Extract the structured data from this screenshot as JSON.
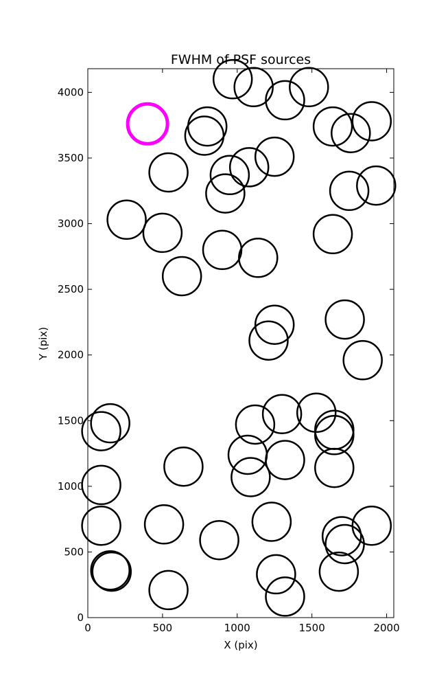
{
  "chart_data": {
    "type": "scatter",
    "title": "FWHM of PSF sources",
    "xlabel": "X (pix)",
    "ylabel": "Y (pix)",
    "xlim": [
      0,
      2048
    ],
    "ylim": [
      0,
      4180
    ],
    "xticks": [
      0,
      500,
      1000,
      1500,
      2000
    ],
    "yticks": [
      0,
      500,
      1000,
      1500,
      2000,
      2500,
      3000,
      3500,
      4000
    ],
    "grid": false,
    "marker": "open-circle",
    "colors": {
      "sources": "#000000",
      "reference": "#ff00ff"
    },
    "series": [
      {
        "role": "sources",
        "points": [
          [
            970,
            4100
          ],
          [
            1110,
            4040
          ],
          [
            1320,
            3940
          ],
          [
            1480,
            4040
          ],
          [
            800,
            3740
          ],
          [
            780,
            3670
          ],
          [
            1640,
            3740
          ],
          [
            1760,
            3690
          ],
          [
            1900,
            3780
          ],
          [
            540,
            3390
          ],
          [
            950,
            3370
          ],
          [
            1080,
            3430
          ],
          [
            1250,
            3510
          ],
          [
            920,
            3230
          ],
          [
            1750,
            3250
          ],
          [
            1930,
            3290
          ],
          [
            260,
            3030
          ],
          [
            500,
            2930
          ],
          [
            1640,
            2920
          ],
          [
            900,
            2800
          ],
          [
            1140,
            2740
          ],
          [
            630,
            2600
          ],
          [
            1250,
            2230
          ],
          [
            1210,
            2110
          ],
          [
            1720,
            2270
          ],
          [
            1840,
            1960
          ],
          [
            150,
            1480
          ],
          [
            90,
            1420
          ],
          [
            1120,
            1470
          ],
          [
            1300,
            1550
          ],
          [
            1530,
            1560
          ],
          [
            1650,
            1430
          ],
          [
            1650,
            1390
          ],
          [
            1070,
            1240
          ],
          [
            1090,
            1070
          ],
          [
            1320,
            1200
          ],
          [
            640,
            1150
          ],
          [
            1650,
            1140
          ],
          [
            90,
            1010
          ],
          [
            90,
            700
          ],
          [
            510,
            710
          ],
          [
            880,
            590
          ],
          [
            1230,
            730
          ],
          [
            1700,
            620
          ],
          [
            1720,
            560
          ],
          [
            1900,
            700
          ],
          [
            150,
            360
          ],
          [
            160,
            350
          ],
          [
            540,
            210
          ],
          [
            1260,
            330
          ],
          [
            1320,
            160
          ],
          [
            1680,
            350
          ]
        ]
      },
      {
        "role": "reference",
        "points": [
          [
            400,
            3760
          ]
        ]
      }
    ]
  }
}
